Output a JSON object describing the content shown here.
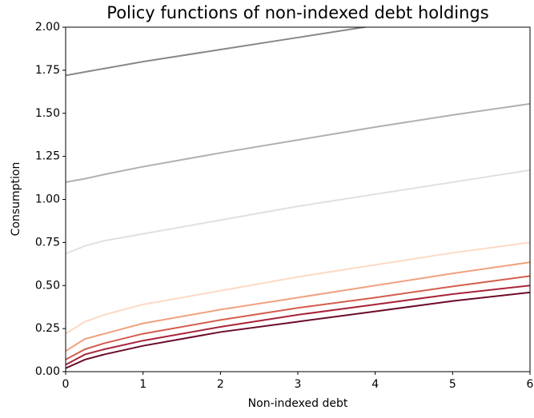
{
  "chart_data": {
    "type": "line",
    "title": "Policy functions of non-indexed debt holdings",
    "x_label": "Non-indexed debt",
    "y_label": "Consumption",
    "x": [
      0,
      0.25,
      0.5,
      1,
      2,
      3,
      4,
      5,
      6
    ],
    "series": [
      {
        "color": "#888888",
        "values": [
          1.72,
          1.74,
          1.76,
          1.8,
          1.87,
          1.94,
          2.01,
          2.08,
          2.15
        ]
      },
      {
        "color": "#b0b0b0",
        "values": [
          1.1,
          1.12,
          1.145,
          1.19,
          1.27,
          1.345,
          1.42,
          1.49,
          1.555
        ]
      },
      {
        "color": "#e0e0e0",
        "values": [
          0.685,
          0.73,
          0.76,
          0.8,
          0.88,
          0.96,
          1.03,
          1.1,
          1.17
        ]
      },
      {
        "color": "#fdd9c4",
        "values": [
          0.22,
          0.29,
          0.33,
          0.39,
          0.47,
          0.55,
          0.62,
          0.69,
          0.75
        ]
      },
      {
        "color": "#f0a17f",
        "values": [
          0.12,
          0.19,
          0.22,
          0.28,
          0.36,
          0.43,
          0.5,
          0.57,
          0.635
        ]
      },
      {
        "color": "#d45d4d",
        "values": [
          0.07,
          0.13,
          0.165,
          0.22,
          0.3,
          0.37,
          0.43,
          0.495,
          0.555
        ]
      },
      {
        "color": "#a8233a",
        "values": [
          0.04,
          0.1,
          0.13,
          0.18,
          0.26,
          0.33,
          0.39,
          0.45,
          0.5
        ]
      },
      {
        "color": "#6b0a27",
        "values": [
          0.02,
          0.07,
          0.1,
          0.15,
          0.23,
          0.29,
          0.35,
          0.41,
          0.46
        ]
      }
    ],
    "xlim": [
      0,
      6
    ],
    "xticks": [
      0,
      1,
      2,
      3,
      4,
      5,
      6
    ],
    "ylim": [
      0,
      2
    ],
    "yticks": [
      {
        "value": 0,
        "label": "0.00"
      },
      {
        "value": 0.25,
        "label": "0.25"
      },
      {
        "value": 0.5,
        "label": "0.50"
      },
      {
        "value": 0.75,
        "label": "0.75"
      },
      {
        "value": 1,
        "label": "1.00"
      },
      {
        "value": 1.25,
        "label": "1.25"
      },
      {
        "value": 1.5,
        "label": "1.50"
      },
      {
        "value": 1.75,
        "label": "1.75"
      },
      {
        "value": 2,
        "label": "2.00"
      }
    ]
  }
}
